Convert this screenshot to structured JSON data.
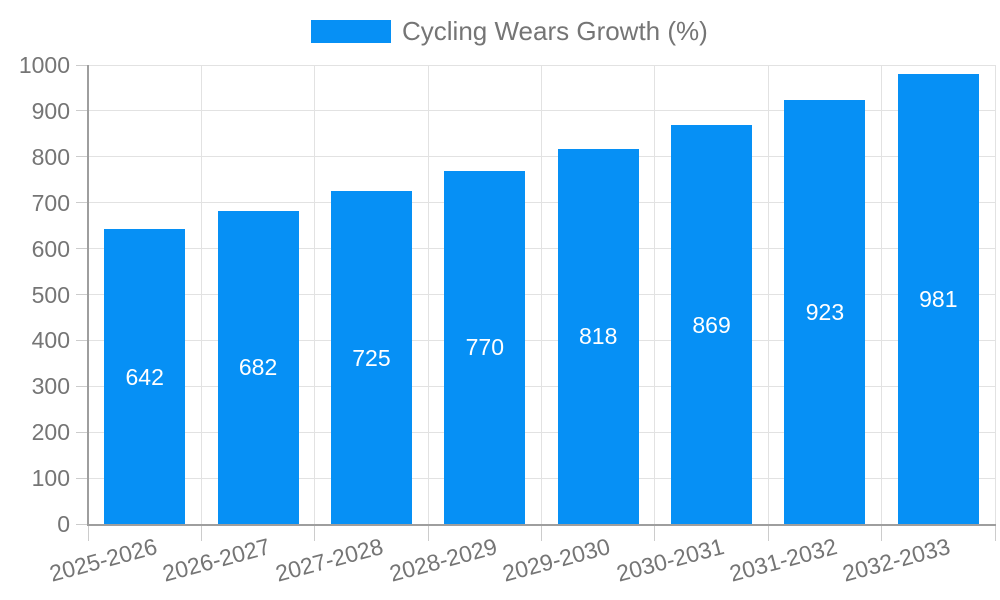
{
  "chart_data": {
    "type": "bar",
    "title": "Cycling Wears Growth (%)",
    "categories": [
      "2025-2026",
      "2026-2027",
      "2027-2028",
      "2028-2029",
      "2029-2030",
      "2030-2031",
      "2031-2032",
      "2032-2033"
    ],
    "series": [
      {
        "name": "Cycling Wears Growth (%)",
        "values": [
          642,
          682,
          725,
          770,
          818,
          869,
          923,
          981
        ]
      }
    ],
    "xlabel": "",
    "ylabel": "",
    "ylim": [
      0,
      1000
    ],
    "ytick_step": 100,
    "yticks": [
      0,
      100,
      200,
      300,
      400,
      500,
      600,
      700,
      800,
      900,
      1000
    ],
    "grid": true,
    "legend_position": "top-center",
    "value_label_position": "inside-center",
    "x_label_rotation_deg": -15,
    "colors": {
      "bar": "#0690F5",
      "value_label": "#FFFFFF",
      "axis": "#9E9E9E",
      "grid": "#E2E2E2",
      "tick": "#CCCCCC",
      "text": "#757575"
    }
  }
}
